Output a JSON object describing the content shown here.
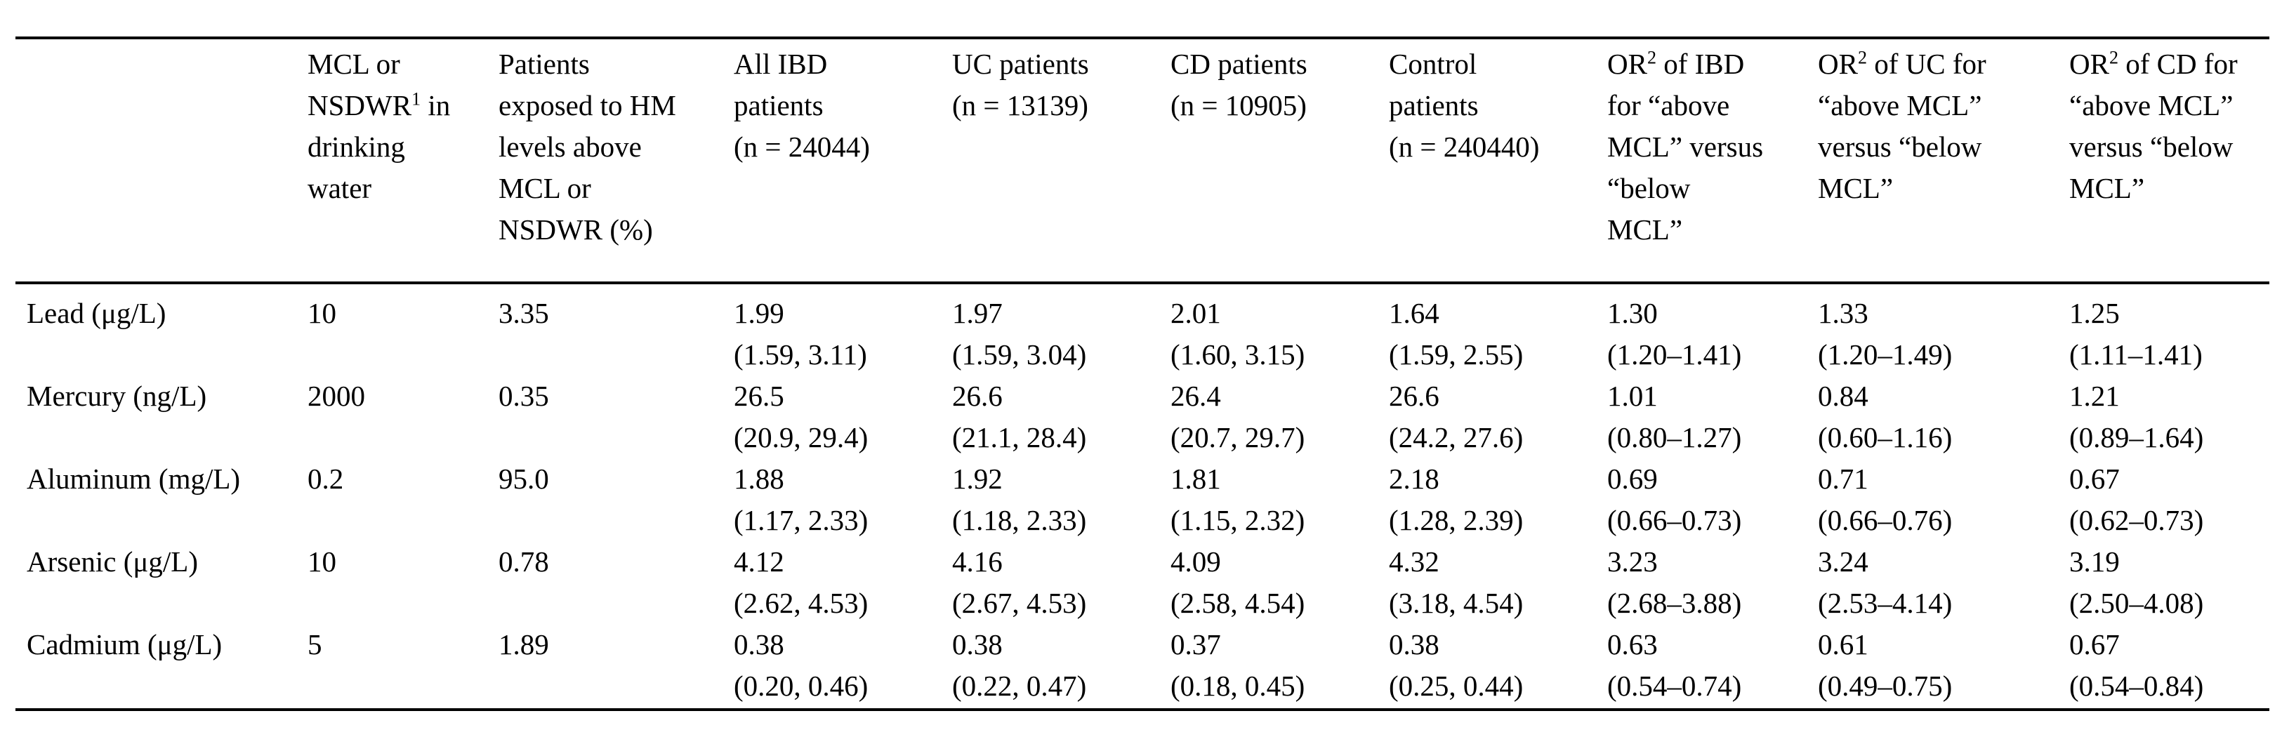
{
  "table": {
    "headers": [
      {
        "lines": [
          ""
        ]
      },
      {
        "lines": [
          "MCL or",
          "NSDWR",
          " in",
          "drinking",
          "water"
        ],
        "sup": "1"
      },
      {
        "lines": [
          "Patients",
          "exposed to HM",
          "levels above",
          "MCL or",
          "NSDWR (%)"
        ]
      },
      {
        "lines": [
          "All IBD",
          "patients",
          "(n = 24044)"
        ]
      },
      {
        "lines": [
          "UC patients",
          "(n = 13139)"
        ]
      },
      {
        "lines": [
          "CD patients",
          "(n = 10905)"
        ]
      },
      {
        "lines": [
          "Control",
          "patients",
          "(n = 240440)"
        ]
      },
      {
        "lines": [
          "OR",
          " of IBD",
          "for “above",
          "MCL” versus",
          "“below",
          "MCL”"
        ],
        "sup": "2"
      },
      {
        "lines": [
          "OR",
          " of UC for",
          "“above MCL”",
          "versus “below",
          "MCL”"
        ],
        "sup": "2"
      },
      {
        "lines": [
          "OR",
          " of CD for",
          "“above MCL”",
          "versus “below",
          "MCL”"
        ],
        "sup": "2"
      }
    ],
    "rows": [
      {
        "metal": "Lead (μg/L)",
        "mcl": "10",
        "exposed_pct": "3.35",
        "ibd": [
          "1.99",
          "(1.59, 3.11)"
        ],
        "uc": [
          "1.97",
          "(1.59, 3.04)"
        ],
        "cd": [
          "2.01",
          "(1.60, 3.15)"
        ],
        "control": [
          "1.64",
          "(1.59, 2.55)"
        ],
        "or_ibd": [
          "1.30",
          "(1.20–1.41)"
        ],
        "or_uc": [
          "1.33",
          "(1.20–1.49)"
        ],
        "or_cd": [
          "1.25",
          "(1.11–1.41)"
        ]
      },
      {
        "metal": "Mercury (ng/L)",
        "mcl": "2000",
        "exposed_pct": "0.35",
        "ibd": [
          "26.5",
          "(20.9, 29.4)"
        ],
        "uc": [
          "26.6",
          "(21.1, 28.4)"
        ],
        "cd": [
          "26.4",
          "(20.7, 29.7)"
        ],
        "control": [
          "26.6",
          "(24.2, 27.6)"
        ],
        "or_ibd": [
          "1.01",
          "(0.80–1.27)"
        ],
        "or_uc": [
          "0.84",
          "(0.60–1.16)"
        ],
        "or_cd": [
          "1.21",
          "(0.89–1.64)"
        ]
      },
      {
        "metal": "Aluminum (mg/L)",
        "mcl": "0.2",
        "exposed_pct": "95.0",
        "ibd": [
          "1.88",
          "(1.17, 2.33)"
        ],
        "uc": [
          "1.92",
          "(1.18, 2.33)"
        ],
        "cd": [
          "1.81",
          "(1.15, 2.32)"
        ],
        "control": [
          "2.18",
          "(1.28, 2.39)"
        ],
        "or_ibd": [
          "0.69",
          "(0.66–0.73)"
        ],
        "or_uc": [
          "0.71",
          "(0.66–0.76)"
        ],
        "or_cd": [
          "0.67",
          "(0.62–0.73)"
        ]
      },
      {
        "metal": "Arsenic (μg/L)",
        "mcl": "10",
        "exposed_pct": "0.78",
        "ibd": [
          "4.12",
          "(2.62, 4.53)"
        ],
        "uc": [
          "4.16",
          "(2.67, 4.53)"
        ],
        "cd": [
          "4.09",
          "(2.58, 4.54)"
        ],
        "control": [
          "4.32",
          "(3.18, 4.54)"
        ],
        "or_ibd": [
          "3.23",
          "(2.68–3.88)"
        ],
        "or_uc": [
          "3.24",
          "(2.53–4.14)"
        ],
        "or_cd": [
          "3.19",
          "(2.50–4.08)"
        ]
      },
      {
        "metal": "Cadmium (μg/L)",
        "mcl": "5",
        "exposed_pct": "1.89",
        "ibd": [
          "0.38",
          "(0.20, 0.46)"
        ],
        "uc": [
          "0.38",
          "(0.22, 0.47)"
        ],
        "cd": [
          "0.37",
          "(0.18, 0.45)"
        ],
        "control": [
          "0.38",
          "(0.25, 0.44)"
        ],
        "or_ibd": [
          "0.63",
          "(0.54–0.74)"
        ],
        "or_uc": [
          "0.61",
          "(0.49–0.75)"
        ],
        "or_cd": [
          "0.67",
          "(0.54–0.84)"
        ]
      }
    ]
  }
}
